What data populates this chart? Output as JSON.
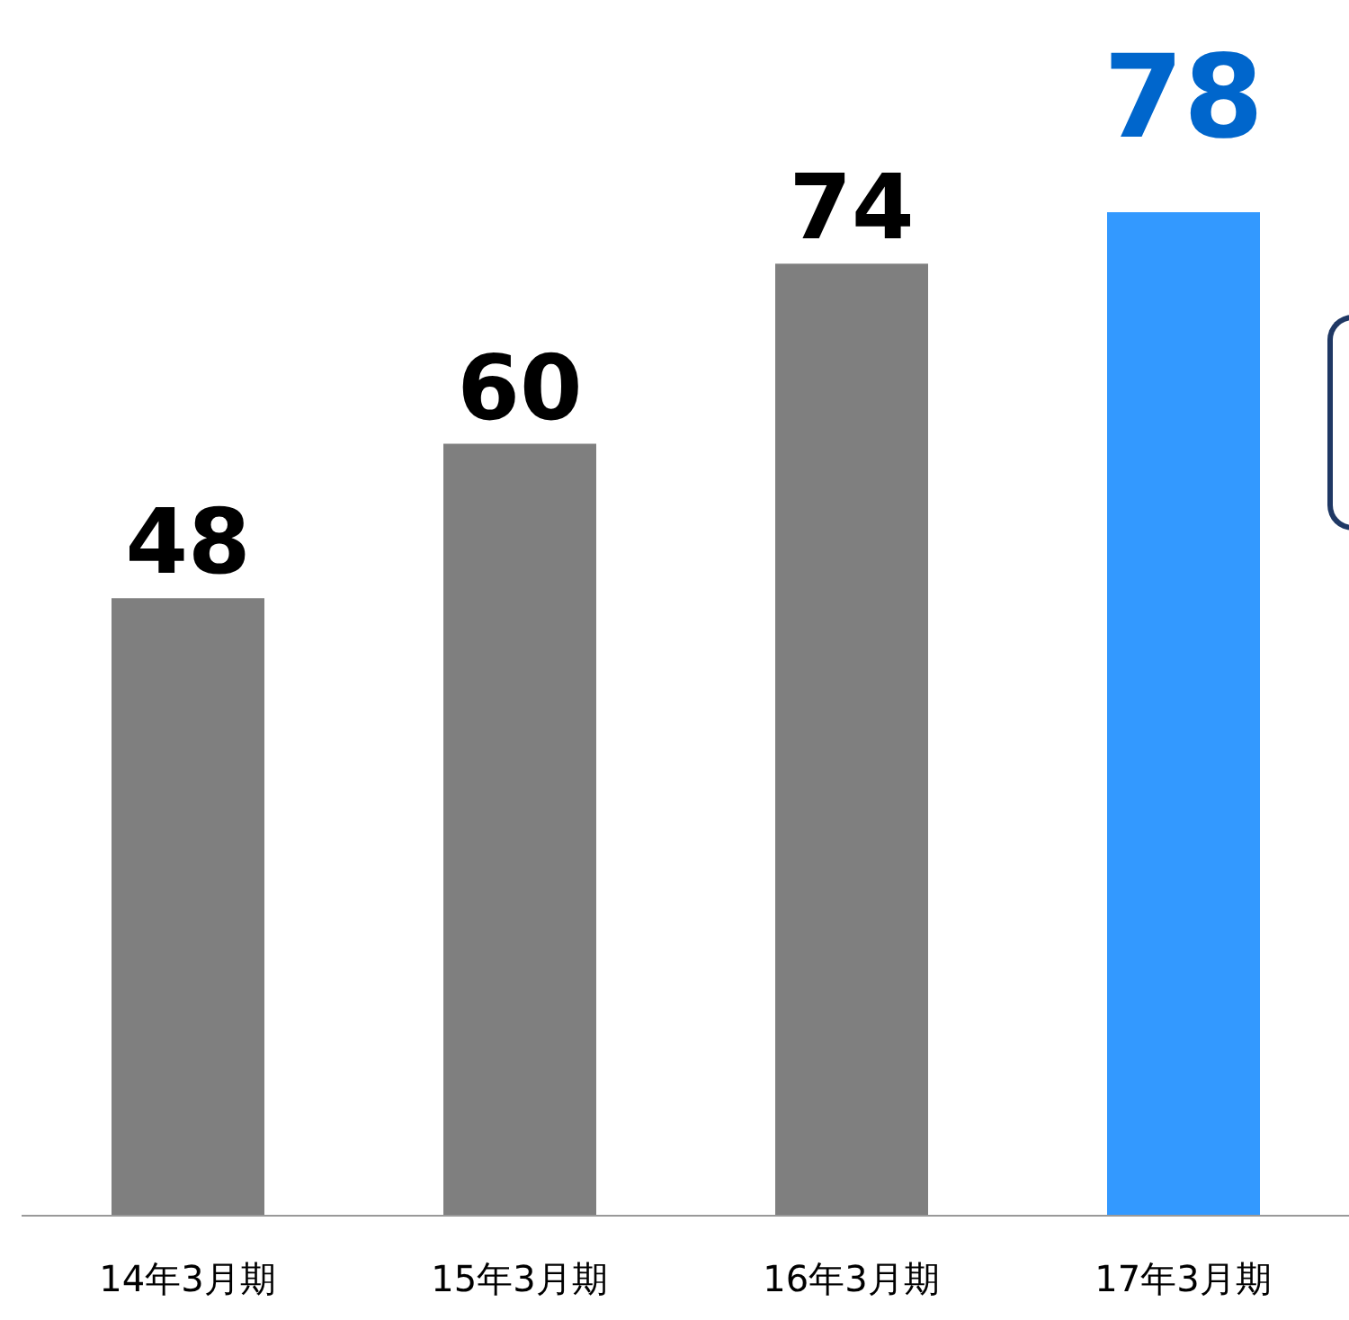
{
  "chart_data": {
    "type": "bar",
    "categories": [
      "14年3月期",
      "15年3月期",
      "16年3月期",
      "17年3月期"
    ],
    "values": [
      48,
      60,
      74,
      78
    ],
    "colors": [
      "#7f7f7f",
      "#7f7f7f",
      "#7f7f7f",
      "#3399ff"
    ],
    "data_labels": true,
    "tick_labels": "x"
  }
}
